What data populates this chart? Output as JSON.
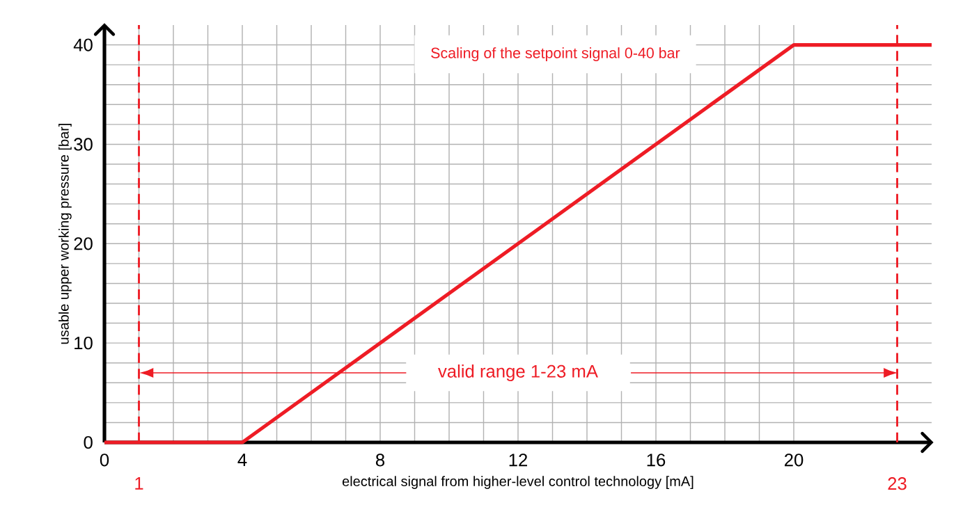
{
  "chart_data": {
    "type": "line",
    "xlabel": "electrical signal from higher-level control technology [mA]",
    "ylabel": "usable upper working pressure [bar]",
    "x": [
      0,
      4,
      20,
      24
    ],
    "values": [
      0,
      0,
      40,
      40
    ],
    "color": "#ee1c25",
    "marker": "none",
    "line_style": "solid",
    "xlim": [
      0,
      24
    ],
    "ylim": [
      0,
      42
    ],
    "xticks": [
      0,
      4,
      8,
      12,
      16,
      20
    ],
    "yticks": [
      0,
      10,
      20,
      30,
      40
    ],
    "grid": true,
    "ref_lines": [
      {
        "axis": "x",
        "value": 1,
        "label": "1",
        "color": "#ee1c25",
        "line_style": "dashed"
      },
      {
        "axis": "x",
        "value": 23,
        "label": "23",
        "color": "#ee1c25",
        "line_style": "dashed"
      }
    ],
    "annotations": [
      "Scaling of the setpoint signal 0-40 bar",
      "valid range 1-23 mA"
    ]
  }
}
